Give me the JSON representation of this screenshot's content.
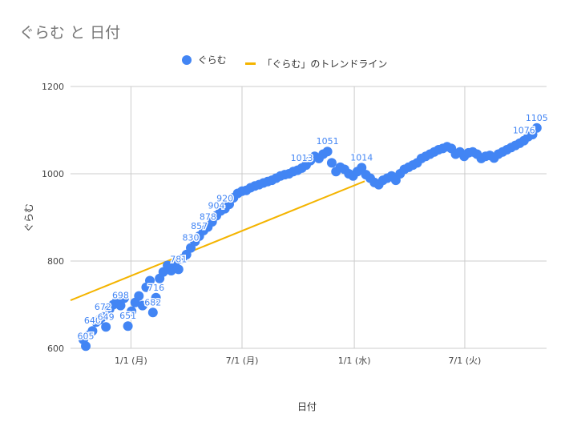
{
  "chart_data": {
    "type": "scatter",
    "title": "ぐらむ と 日付",
    "xlabel": "日付",
    "ylabel": "ぐらむ",
    "ylim": [
      600,
      1200
    ],
    "yticks": [
      600,
      800,
      1000,
      1200
    ],
    "xticks": [
      {
        "date": "2024-01-01",
        "label": "1/1 (月)"
      },
      {
        "date": "2024-07-01",
        "label": "7/1 (月)"
      },
      {
        "date": "2025-01-01",
        "label": "1/1 (水)"
      },
      {
        "date": "2025-07-01",
        "label": "7/1 (火)"
      }
    ],
    "xlim": [
      "2023-09-24",
      "2025-11-12"
    ],
    "grid": true,
    "legend_position": "top",
    "series": [
      {
        "name": "ぐらむ",
        "color": "#4285f4",
        "points": [
          [
            "2023-10-15",
            620
          ],
          [
            "2023-10-19",
            605
          ],
          [
            "2023-10-24",
            630
          ],
          [
            "2023-10-30",
            640
          ],
          [
            "2023-11-05",
            660
          ],
          [
            "2023-11-10",
            665
          ],
          [
            "2023-11-16",
            672
          ],
          [
            "2023-11-21",
            649
          ],
          [
            "2023-11-27",
            690
          ],
          [
            "2023-12-03",
            700
          ],
          [
            "2023-12-09",
            708
          ],
          [
            "2023-12-15",
            698
          ],
          [
            "2023-12-21",
            715
          ],
          [
            "2023-12-27",
            651
          ],
          [
            "2024-01-02",
            685
          ],
          [
            "2024-01-08",
            705
          ],
          [
            "2024-01-14",
            720
          ],
          [
            "2024-01-20",
            698
          ],
          [
            "2024-01-26",
            740
          ],
          [
            "2024-02-01",
            755
          ],
          [
            "2024-02-06",
            682
          ],
          [
            "2024-02-11",
            716
          ],
          [
            "2024-02-17",
            760
          ],
          [
            "2024-02-23",
            775
          ],
          [
            "2024-03-01",
            790
          ],
          [
            "2024-03-07",
            778
          ],
          [
            "2024-03-13",
            795
          ],
          [
            "2024-03-19",
            781
          ],
          [
            "2024-03-25",
            805
          ],
          [
            "2024-04-01",
            815
          ],
          [
            "2024-04-08",
            830
          ],
          [
            "2024-04-15",
            845
          ],
          [
            "2024-04-22",
            857
          ],
          [
            "2024-04-29",
            870
          ],
          [
            "2024-05-06",
            878
          ],
          [
            "2024-05-13",
            890
          ],
          [
            "2024-05-20",
            904
          ],
          [
            "2024-05-27",
            915
          ],
          [
            "2024-06-03",
            920
          ],
          [
            "2024-06-10",
            930
          ],
          [
            "2024-06-17",
            945
          ],
          [
            "2024-06-24",
            955
          ],
          [
            "2024-07-01",
            960
          ],
          [
            "2024-07-08",
            962
          ],
          [
            "2024-07-15",
            968
          ],
          [
            "2024-07-22",
            972
          ],
          [
            "2024-07-29",
            975
          ],
          [
            "2024-08-05",
            979
          ],
          [
            "2024-08-12",
            982
          ],
          [
            "2024-08-19",
            985
          ],
          [
            "2024-08-26",
            990
          ],
          [
            "2024-09-02",
            995
          ],
          [
            "2024-09-09",
            998
          ],
          [
            "2024-09-16",
            1000
          ],
          [
            "2024-09-23",
            1005
          ],
          [
            "2024-09-30",
            1008
          ],
          [
            "2024-10-07",
            1013
          ],
          [
            "2024-10-14",
            1020
          ],
          [
            "2024-10-21",
            1030
          ],
          [
            "2024-10-28",
            1040
          ],
          [
            "2024-11-04",
            1035
          ],
          [
            "2024-11-11",
            1045
          ],
          [
            "2024-11-18",
            1051
          ],
          [
            "2024-11-25",
            1025
          ],
          [
            "2024-12-02",
            1005
          ],
          [
            "2024-12-09",
            1015
          ],
          [
            "2024-12-16",
            1010
          ],
          [
            "2024-12-23",
            1000
          ],
          [
            "2024-12-30",
            995
          ],
          [
            "2025-01-06",
            1005
          ],
          [
            "2025-01-13",
            1014
          ],
          [
            "2025-01-20",
            998
          ],
          [
            "2025-01-27",
            990
          ],
          [
            "2025-02-03",
            980
          ],
          [
            "2025-02-10",
            975
          ],
          [
            "2025-02-17",
            985
          ],
          [
            "2025-02-24",
            990
          ],
          [
            "2025-03-03",
            995
          ],
          [
            "2025-03-10",
            985
          ],
          [
            "2025-03-17",
            1000
          ],
          [
            "2025-03-24",
            1010
          ],
          [
            "2025-03-31",
            1015
          ],
          [
            "2025-04-07",
            1020
          ],
          [
            "2025-04-14",
            1025
          ],
          [
            "2025-04-21",
            1035
          ],
          [
            "2025-04-28",
            1040
          ],
          [
            "2025-05-05",
            1045
          ],
          [
            "2025-05-12",
            1050
          ],
          [
            "2025-05-19",
            1055
          ],
          [
            "2025-05-26",
            1058
          ],
          [
            "2025-06-02",
            1062
          ],
          [
            "2025-06-09",
            1058
          ],
          [
            "2025-06-16",
            1045
          ],
          [
            "2025-06-23",
            1050
          ],
          [
            "2025-06-30",
            1040
          ],
          [
            "2025-07-07",
            1048
          ],
          [
            "2025-07-14",
            1050
          ],
          [
            "2025-07-21",
            1045
          ],
          [
            "2025-07-28",
            1035
          ],
          [
            "2025-08-04",
            1040
          ],
          [
            "2025-08-11",
            1042
          ],
          [
            "2025-08-18",
            1036
          ],
          [
            "2025-08-25",
            1045
          ],
          [
            "2025-09-01",
            1050
          ],
          [
            "2025-09-08",
            1055
          ],
          [
            "2025-09-15",
            1060
          ],
          [
            "2025-09-22",
            1065
          ],
          [
            "2025-09-29",
            1070
          ],
          [
            "2025-10-06",
            1076
          ],
          [
            "2025-10-13",
            1085
          ],
          [
            "2025-10-20",
            1090
          ],
          [
            "2025-10-27",
            1105
          ]
        ],
        "labels": [
          {
            "date": "2023-10-19",
            "value": 605
          },
          {
            "date": "2023-10-30",
            "value": 640
          },
          {
            "date": "2023-11-21",
            "value": 649
          },
          {
            "date": "2023-12-27",
            "value": 651
          },
          {
            "date": "2023-11-16",
            "value": 672
          },
          {
            "date": "2024-02-06",
            "value": 682
          },
          {
            "date": "2023-12-15",
            "value": 698
          },
          {
            "date": "2024-02-11",
            "value": 716
          },
          {
            "date": "2024-03-19",
            "value": 781
          },
          {
            "date": "2024-04-08",
            "value": 830
          },
          {
            "date": "2024-04-22",
            "value": 857
          },
          {
            "date": "2024-05-06",
            "value": 878
          },
          {
            "date": "2024-05-20",
            "value": 904
          },
          {
            "date": "2024-06-03",
            "value": 920
          },
          {
            "date": "2024-10-07",
            "value": 1013
          },
          {
            "date": "2024-11-18",
            "value": 1051
          },
          {
            "date": "2025-01-13",
            "value": 1014
          },
          {
            "date": "2025-10-06",
            "value": 1076
          },
          {
            "date": "2025-10-27",
            "value": 1105
          }
        ]
      },
      {
        "name": "「ぐらむ」のトレンドライン",
        "type": "line",
        "color": "#f4b400",
        "points": [
          [
            "2023-09-24",
            710
          ],
          [
            "2025-01-18",
            983
          ]
        ]
      }
    ]
  }
}
